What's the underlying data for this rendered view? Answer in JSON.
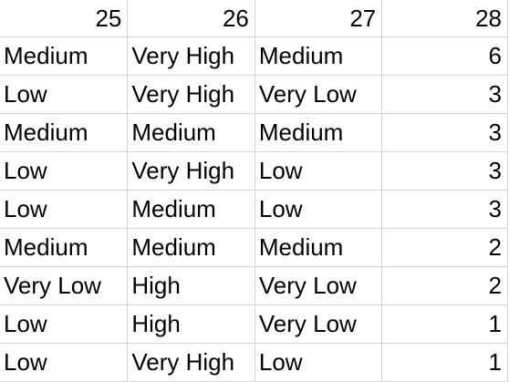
{
  "sheet": {
    "header": [
      "25",
      "26",
      "27",
      "28"
    ],
    "rows": [
      [
        "Medium",
        "Very High",
        "Medium",
        "6"
      ],
      [
        "Low",
        "Very High",
        "Very Low",
        "3"
      ],
      [
        "Medium",
        "Medium",
        "Medium",
        "3"
      ],
      [
        "Low",
        "Very High",
        "Low",
        "3"
      ],
      [
        "Low",
        "Medium",
        "Low",
        "3"
      ],
      [
        "Medium",
        "Medium",
        "Medium",
        "2"
      ],
      [
        "Very Low",
        "High",
        "Very Low",
        "2"
      ],
      [
        "Low",
        "High",
        "Very Low",
        "1"
      ],
      [
        "Low",
        "Very High",
        "Low",
        "1"
      ]
    ]
  }
}
